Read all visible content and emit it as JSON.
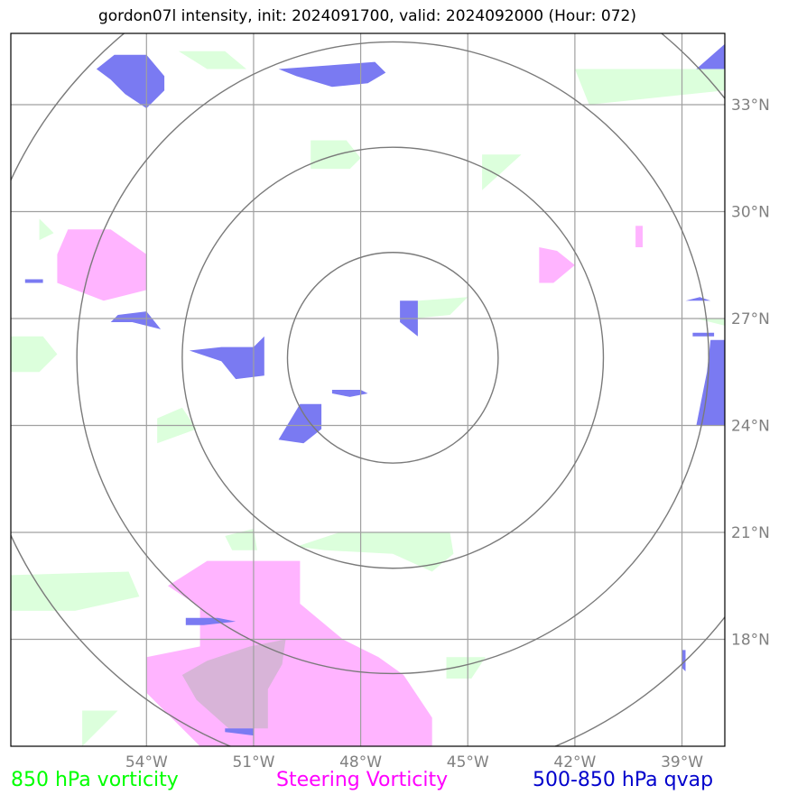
{
  "title": "gordon07l intensity, init: 2024091700, valid: 2024092000 (Hour: 072)",
  "chart_data": {
    "type": "map",
    "lon_range": [
      -57.8,
      -37.8
    ],
    "lat_range": [
      15.0,
      35.0
    ],
    "x_ticks": [
      {
        "value": -54,
        "label": "54°W"
      },
      {
        "value": -51,
        "label": "51°W"
      },
      {
        "value": -48,
        "label": "48°W"
      },
      {
        "value": -45,
        "label": "45°W"
      },
      {
        "value": -42,
        "label": "42°W"
      },
      {
        "value": -39,
        "label": "39°W"
      }
    ],
    "y_ticks": [
      {
        "value": 33,
        "label": "33°N"
      },
      {
        "value": 30,
        "label": "30°N"
      },
      {
        "value": 27,
        "label": "27°N"
      },
      {
        "value": 24,
        "label": "24°N"
      },
      {
        "value": 21,
        "label": "21°N"
      },
      {
        "value": 18,
        "label": "18°N"
      }
    ],
    "grid": true,
    "range_rings": {
      "center": [
        -47.1,
        25.9
      ],
      "radius_deg": [
        2.95,
        5.9,
        8.85,
        11.8
      ]
    },
    "legend": [
      {
        "label": "850 hPa vorticity",
        "color": "#00ff00"
      },
      {
        "label": "Steering Vorticity",
        "color": "#ff00ff"
      },
      {
        "label": "500-850 hPa qvap",
        "color": "#0000cc"
      }
    ],
    "layers": [
      {
        "name": "850 hPa vorticity",
        "fill": "#dcffdc",
        "polygons": [
          [
            [
              -53.1,
              34.5
            ],
            [
              -51.8,
              34.5
            ],
            [
              -51.2,
              34.0
            ],
            [
              -52.3,
              34.0
            ]
          ],
          [
            [
              -49.4,
              32.0
            ],
            [
              -48.4,
              32.0
            ],
            [
              -48.0,
              31.5
            ],
            [
              -48.3,
              31.2
            ],
            [
              -49.4,
              31.2
            ]
          ],
          [
            [
              -42.0,
              34.0
            ],
            [
              -37.8,
              34.0
            ],
            [
              -37.8,
              33.4
            ],
            [
              -41.6,
              33.0
            ]
          ],
          [
            [
              -44.6,
              31.6
            ],
            [
              -43.5,
              31.6
            ],
            [
              -44.6,
              30.6
            ]
          ],
          [
            [
              -57.0,
              29.8
            ],
            [
              -56.6,
              29.4
            ],
            [
              -57.0,
              29.2
            ]
          ],
          [
            [
              -46.4,
              27.5
            ],
            [
              -45.0,
              27.6
            ],
            [
              -45.5,
              27.1
            ],
            [
              -46.5,
              27.0
            ]
          ],
          [
            [
              -38.6,
              27.0
            ],
            [
              -37.8,
              27.0
            ],
            [
              -37.8,
              26.8
            ]
          ],
          [
            [
              -57.8,
              26.5
            ],
            [
              -56.9,
              26.5
            ],
            [
              -56.5,
              26.0
            ],
            [
              -57.0,
              25.5
            ],
            [
              -57.8,
              25.5
            ]
          ],
          [
            [
              -53.7,
              24.2
            ],
            [
              -53.0,
              24.5
            ],
            [
              -52.6,
              23.9
            ],
            [
              -53.7,
              23.5
            ]
          ],
          [
            [
              -51.8,
              20.9
            ],
            [
              -51.0,
              21.1
            ],
            [
              -50.9,
              20.5
            ],
            [
              -51.6,
              20.5
            ]
          ],
          [
            [
              -49.8,
              20.6
            ],
            [
              -48.6,
              21.0
            ],
            [
              -45.5,
              21.0
            ],
            [
              -45.4,
              20.4
            ],
            [
              -46.0,
              19.9
            ],
            [
              -47.1,
              20.4
            ],
            [
              -49.0,
              20.5
            ]
          ],
          [
            [
              -57.8,
              19.8
            ],
            [
              -54.5,
              19.9
            ],
            [
              -54.2,
              19.2
            ],
            [
              -56.0,
              18.8
            ],
            [
              -57.8,
              18.8
            ]
          ],
          [
            [
              -45.6,
              17.5
            ],
            [
              -44.5,
              17.5
            ],
            [
              -44.9,
              16.9
            ],
            [
              -45.6,
              16.9
            ]
          ],
          [
            [
              -55.8,
              16.0
            ],
            [
              -54.8,
              16.0
            ],
            [
              -55.8,
              15.0
            ]
          ]
        ]
      },
      {
        "name": "Steering Vorticity",
        "fill": "#ffb4ff",
        "polygons": [
          [
            [
              -56.2,
              29.5
            ],
            [
              -55.0,
              29.5
            ],
            [
              -54.0,
              28.8
            ],
            [
              -54.0,
              27.8
            ],
            [
              -55.2,
              27.5
            ],
            [
              -56.5,
              28.0
            ],
            [
              -56.5,
              28.8
            ]
          ],
          [
            [
              -43.0,
              29.0
            ],
            [
              -42.5,
              28.9
            ],
            [
              -42.0,
              28.5
            ],
            [
              -42.6,
              28.0
            ],
            [
              -43.0,
              28.0
            ]
          ],
          [
            [
              -40.3,
              29.6
            ],
            [
              -40.1,
              29.6
            ],
            [
              -40.1,
              29.0
            ],
            [
              -40.3,
              29.0
            ]
          ],
          [
            [
              -52.3,
              20.2
            ],
            [
              -49.7,
              20.2
            ],
            [
              -49.7,
              19.0
            ],
            [
              -48.5,
              18.0
            ],
            [
              -47.5,
              17.5
            ],
            [
              -46.8,
              17.0
            ],
            [
              -46.0,
              15.8
            ],
            [
              -46.0,
              15.0
            ],
            [
              -52.5,
              15.0
            ],
            [
              -54.0,
              16.5
            ],
            [
              -54.0,
              17.5
            ],
            [
              -52.5,
              17.8
            ],
            [
              -52.5,
              18.9
            ],
            [
              -53.4,
              19.5
            ]
          ]
        ]
      },
      {
        "name": "Steering overlap",
        "fill": "#d8b4d8",
        "polygons": [
          [
            [
              -50.1,
              18.0
            ],
            [
              -51.1,
              17.8
            ],
            [
              -52.3,
              17.4
            ],
            [
              -53.0,
              17.0
            ],
            [
              -52.6,
              16.3
            ],
            [
              -51.7,
              15.5
            ],
            [
              -50.6,
              15.5
            ],
            [
              -50.6,
              16.6
            ],
            [
              -50.2,
              17.3
            ]
          ]
        ]
      },
      {
        "name": "500-850 hPa qvap",
        "fill": "#7a7af2",
        "polygons": [
          [
            [
              -54.9,
              34.4
            ],
            [
              -54.0,
              34.4
            ],
            [
              -53.5,
              33.8
            ],
            [
              -53.5,
              33.4
            ],
            [
              -54.0,
              32.9
            ],
            [
              -54.6,
              33.3
            ],
            [
              -55.0,
              33.7
            ],
            [
              -55.4,
              34.0
            ]
          ],
          [
            [
              -50.3,
              34.0
            ],
            [
              -48.9,
              34.1
            ],
            [
              -47.6,
              34.2
            ],
            [
              -47.3,
              33.9
            ],
            [
              -47.8,
              33.6
            ],
            [
              -48.8,
              33.5
            ],
            [
              -49.8,
              33.8
            ]
          ],
          [
            [
              -37.8,
              34.7
            ],
            [
              -38.6,
              34.0
            ],
            [
              -37.8,
              34.0
            ]
          ],
          [
            [
              -54.8,
              27.1
            ],
            [
              -54.0,
              27.2
            ],
            [
              -53.6,
              26.7
            ],
            [
              -54.4,
              26.9
            ],
            [
              -55.0,
              26.9
            ]
          ],
          [
            [
              -51.9,
              26.2
            ],
            [
              -51.0,
              26.2
            ],
            [
              -50.7,
              26.5
            ],
            [
              -50.7,
              25.4
            ],
            [
              -51.5,
              25.3
            ],
            [
              -51.9,
              25.8
            ],
            [
              -52.8,
              26.1
            ]
          ],
          [
            [
              -46.9,
              27.5
            ],
            [
              -46.4,
              27.5
            ],
            [
              -46.4,
              26.5
            ],
            [
              -46.9,
              26.9
            ],
            [
              -46.9,
              27.1
            ]
          ],
          [
            [
              -48.8,
              25.0
            ],
            [
              -48.0,
              25.0
            ],
            [
              -47.8,
              24.9
            ],
            [
              -48.3,
              24.8
            ],
            [
              -48.8,
              24.9
            ]
          ],
          [
            [
              -49.7,
              24.6
            ],
            [
              -49.1,
              24.6
            ],
            [
              -49.1,
              23.9
            ],
            [
              -49.6,
              23.5
            ],
            [
              -50.3,
              23.6
            ]
          ],
          [
            [
              -37.8,
              26.4
            ],
            [
              -38.2,
              26.4
            ],
            [
              -38.3,
              25.5
            ],
            [
              -38.6,
              24.0
            ],
            [
              -37.8,
              24.0
            ]
          ],
          [
            [
              -38.9,
              27.5
            ],
            [
              -38.5,
              27.6
            ],
            [
              -38.2,
              27.5
            ]
          ],
          [
            [
              -52.9,
              18.6
            ],
            [
              -52.0,
              18.6
            ],
            [
              -51.5,
              18.5
            ],
            [
              -52.4,
              18.4
            ],
            [
              -52.9,
              18.4
            ]
          ],
          [
            [
              -39.0,
              17.7
            ],
            [
              -38.9,
              17.7
            ],
            [
              -38.9,
              17.1
            ],
            [
              -39.0,
              17.2
            ]
          ],
          [
            [
              -51.8,
              15.5
            ],
            [
              -51.0,
              15.5
            ],
            [
              -51.0,
              15.3
            ],
            [
              -51.8,
              15.4
            ]
          ],
          [
            [
              -57.4,
              28.1
            ],
            [
              -56.9,
              28.1
            ],
            [
              -56.9,
              28.0
            ],
            [
              -57.4,
              28.0
            ]
          ],
          [
            [
              -38.1,
              26.6
            ],
            [
              -38.7,
              26.6
            ],
            [
              -38.7,
              26.5
            ],
            [
              -38.1,
              26.5
            ]
          ]
        ]
      }
    ]
  }
}
